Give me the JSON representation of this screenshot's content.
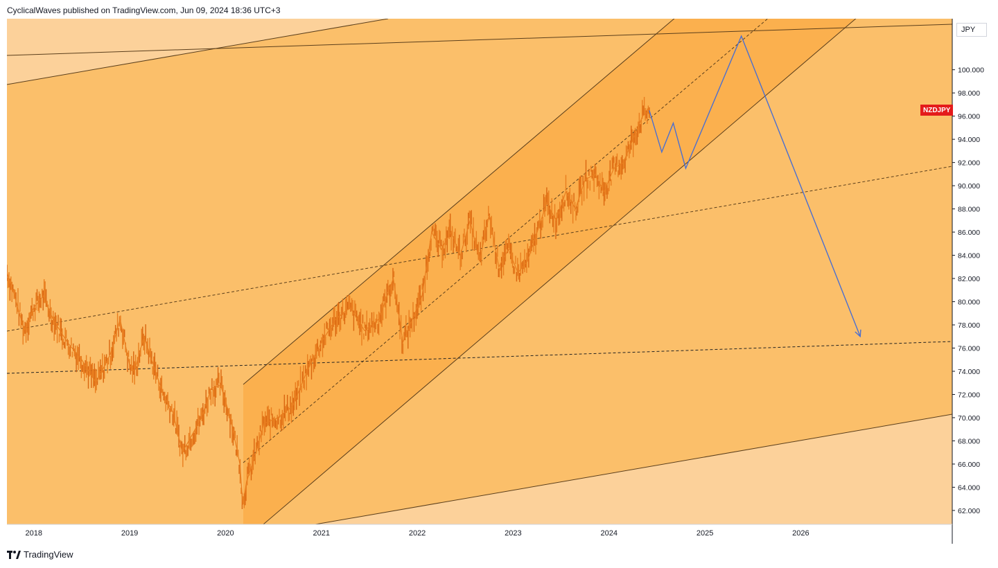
{
  "header": {
    "text": "CyclicalWaves published on TradingView.com, Jun 09, 2024 18:36 UTC+3"
  },
  "footer": {
    "brand": "TradingView",
    "logo_icon": "tradingview-logo-icon"
  },
  "currency": "JPY",
  "symbol_tag": {
    "label": "NZDJPY",
    "color": "#e41b1b"
  },
  "colors": {
    "band_light": "#fcd19a",
    "band_mid": "#fbbf6a",
    "band_dark": "#fbb04e",
    "candles": "#e87d1e",
    "projection": "#4a6fd1",
    "lines": "#5a3e1b"
  },
  "chart_data": {
    "type": "line",
    "title": "",
    "xlabel": "",
    "ylabel": "",
    "x_ticks": [
      "2018",
      "2019",
      "2020",
      "2021",
      "2022",
      "2023",
      "2024",
      "2025",
      "2026"
    ],
    "y_ticks": [
      "62.000",
      "64.000",
      "66.000",
      "68.000",
      "70.000",
      "72.000",
      "74.000",
      "76.000",
      "78.000",
      "80.000",
      "82.000",
      "84.000",
      "86.000",
      "88.000",
      "90.000",
      "92.000",
      "94.000",
      "96.000",
      "98.000",
      "100.000"
    ],
    "ylim": [
      60.8,
      104.4
    ],
    "xlim": [
      2017.72,
      2027.58
    ],
    "grid": false,
    "series": [
      {
        "type": "line",
        "x": [
          2017.72,
          2017.8,
          2017.9,
          2018.0,
          2018.1,
          2018.2,
          2018.35,
          2018.5,
          2018.65,
          2018.8,
          2018.9,
          2019.0,
          2019.05,
          2019.15,
          2019.25,
          2019.35,
          2019.45,
          2019.55,
          2019.65,
          2019.75,
          2019.85,
          2019.95,
          2020.05,
          2020.15,
          2020.18,
          2020.22,
          2020.3,
          2020.4,
          2020.55,
          2020.7,
          2020.85,
          2021.0,
          2021.15,
          2021.3,
          2021.45,
          2021.6,
          2021.75,
          2021.85,
          2021.95,
          2022.05,
          2022.15,
          2022.25,
          2022.35,
          2022.45,
          2022.55,
          2022.65,
          2022.75,
          2022.85,
          2022.95,
          2023.05,
          2023.15,
          2023.25,
          2023.35,
          2023.45,
          2023.55,
          2023.65,
          2023.75,
          2023.85,
          2023.95,
          2024.05,
          2024.15,
          2024.25,
          2024.35,
          2024.42
        ],
        "values": [
          82.5,
          80.5,
          77.5,
          79.5,
          80.5,
          78.5,
          76.5,
          75.0,
          73.0,
          75.5,
          78.5,
          74.5,
          74.0,
          77.0,
          74.5,
          72.0,
          70.5,
          67.0,
          68.5,
          70.0,
          72.5,
          72.8,
          70.0,
          66.0,
          62.5,
          64.5,
          66.5,
          69.5,
          70.0,
          71.0,
          74.0,
          76.5,
          78.5,
          79.5,
          77.5,
          78.5,
          82.0,
          76.5,
          78.5,
          80.5,
          86.0,
          84.5,
          86.0,
          84.0,
          87.0,
          83.5,
          87.5,
          83.0,
          84.5,
          82.5,
          83.5,
          86.0,
          88.5,
          87.0,
          89.5,
          88.0,
          90.5,
          91.0,
          89.5,
          91.5,
          92.0,
          94.0,
          96.0,
          96.5
        ]
      },
      {
        "type": "line",
        "x": [
          2024.42,
          2024.55,
          2024.67,
          2024.8,
          2025.38,
          2026.62
        ],
        "values": [
          96.5,
          92.9,
          95.4,
          91.5,
          102.9,
          77.0
        ]
      }
    ]
  }
}
